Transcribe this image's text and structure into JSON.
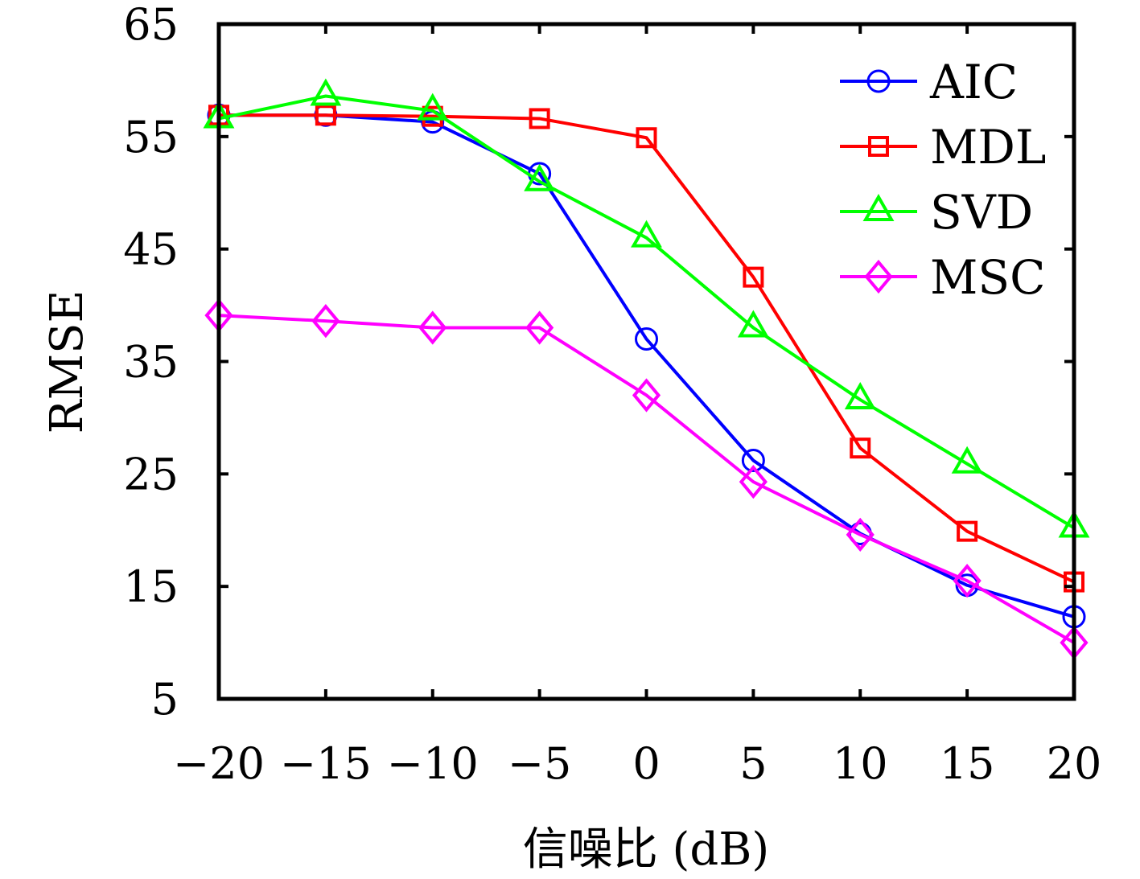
{
  "chart_data": {
    "type": "line",
    "title": "",
    "xlabel": "信噪比 (dB)",
    "ylabel": "RMSE",
    "x": [
      -20,
      -15,
      -10,
      -5,
      0,
      5,
      10,
      15,
      20
    ],
    "xlim": [
      -20,
      20
    ],
    "ylim": [
      5,
      65
    ],
    "xticks": [
      -20,
      -15,
      -10,
      -5,
      0,
      5,
      10,
      15,
      20
    ],
    "xtick_labels": [
      "−20",
      "−15",
      "−10",
      "−5",
      "0",
      "5",
      "10",
      "15",
      "20"
    ],
    "yticks": [
      5,
      15,
      25,
      35,
      45,
      55,
      65
    ],
    "ytick_labels": [
      "5",
      "15",
      "25",
      "35",
      "45",
      "55",
      "65"
    ],
    "grid": false,
    "legend_position": "top-right",
    "series": [
      {
        "name": "AIC",
        "color": "#0000ff",
        "marker": "circle",
        "values": [
          56.9,
          56.9,
          56.3,
          51.7,
          37.0,
          26.2,
          19.7,
          15.1,
          12.3
        ]
      },
      {
        "name": "MDL",
        "color": "#ff0000",
        "marker": "square",
        "values": [
          56.9,
          56.9,
          56.8,
          56.6,
          54.9,
          42.5,
          27.3,
          19.9,
          15.4
        ]
      },
      {
        "name": "SVD",
        "color": "#00ff00",
        "marker": "triangle",
        "values": [
          56.6,
          58.6,
          57.3,
          51.0,
          46.0,
          38.0,
          31.6,
          25.9,
          20.2
        ]
      },
      {
        "name": "MSC",
        "color": "#ff00ff",
        "marker": "diamond",
        "values": [
          39.1,
          38.6,
          38.0,
          38.0,
          32.0,
          24.3,
          19.6,
          15.5,
          10.0
        ]
      }
    ]
  }
}
